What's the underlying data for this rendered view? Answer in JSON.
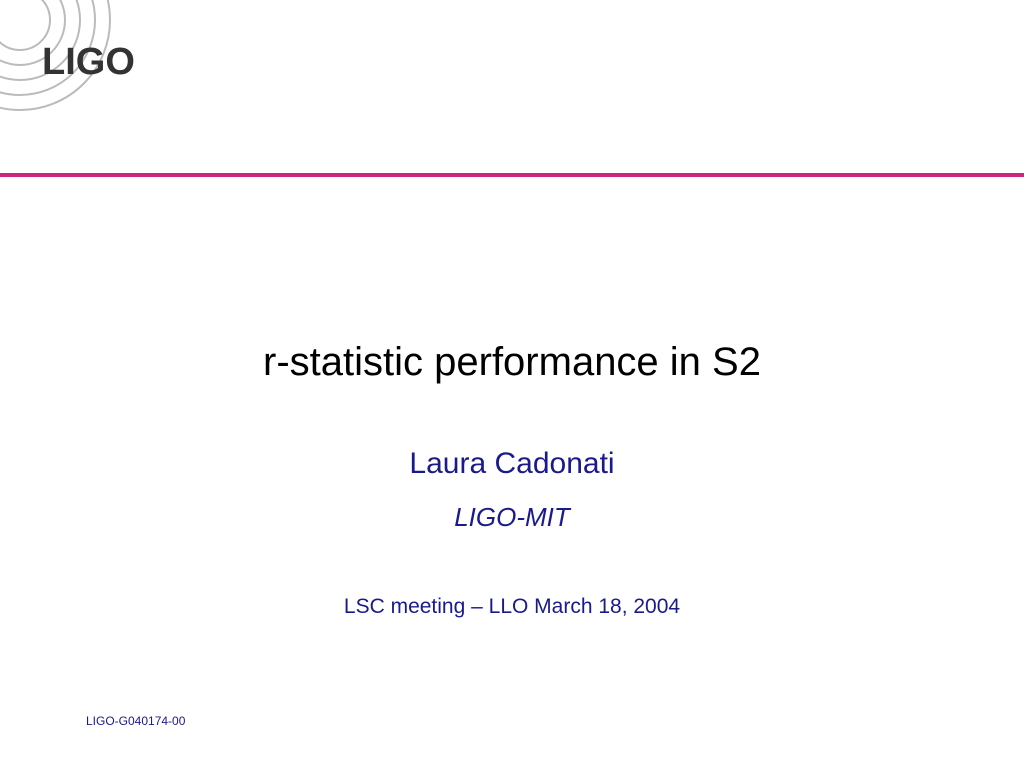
{
  "logo": "LIGO",
  "title": "r-statistic performance in S2",
  "author": "Laura Cadonati",
  "affiliation": "LIGO-MIT",
  "event": "LSC meeting – LLO March 18, 2004",
  "footer": "LIGO-G040174-00"
}
